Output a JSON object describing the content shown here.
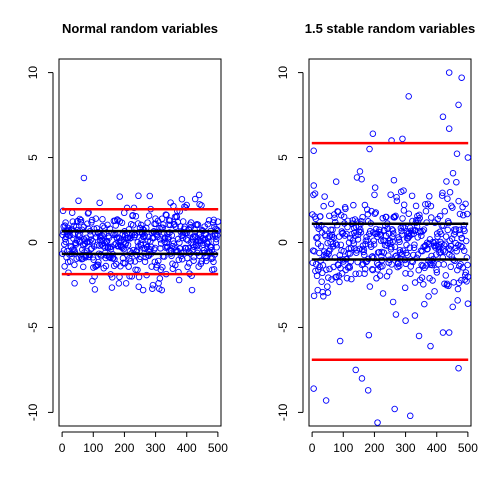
{
  "chart_data": [
    {
      "type": "scatter",
      "title": "Normal random variables",
      "xlabel": "",
      "ylabel": "",
      "xlim": [
        -10,
        510
      ],
      "ylim": [
        -10.8,
        10.8
      ],
      "xticks": [
        0,
        100,
        200,
        300,
        400,
        500
      ],
      "xtick_labels": [
        "0",
        "100",
        "200",
        "300",
        "400",
        "500"
      ],
      "yticks": [
        -10,
        -5,
        0,
        5,
        10
      ],
      "ytick_labels": [
        "-10",
        "-5",
        "0",
        "5",
        "10"
      ],
      "grid": false,
      "point_color": "#0000ff",
      "point_style": "open-circle",
      "n_points": 500,
      "value_range": [
        -2.8,
        3.8
      ],
      "hlines": [
        {
          "y": 1.96,
          "color": "#ff0000"
        },
        {
          "y": -1.86,
          "color": "#ff0000"
        },
        {
          "y": 0.67,
          "color": "#000000"
        },
        {
          "y": -0.67,
          "color": "#000000"
        }
      ],
      "highlight_points": [
        {
          "x": 70,
          "y": 3.8
        },
        {
          "x": 185,
          "y": 2.7
        },
        {
          "x": 245,
          "y": 2.75
        },
        {
          "x": 440,
          "y": 2.8
        },
        {
          "x": 40,
          "y": -2.4
        },
        {
          "x": 260,
          "y": -2.8
        }
      ]
    },
    {
      "type": "scatter",
      "title": "1.5 stable random variables",
      "xlabel": "",
      "ylabel": "",
      "xlim": [
        -10,
        510
      ],
      "ylim": [
        -10.8,
        10.8
      ],
      "xticks": [
        0,
        100,
        200,
        300,
        400,
        500
      ],
      "xtick_labels": [
        "0",
        "100",
        "200",
        "300",
        "400",
        "500"
      ],
      "yticks": [
        -10,
        -5,
        0,
        5,
        10
      ],
      "ytick_labels": [
        "-10",
        "-5",
        "0",
        "5",
        "10"
      ],
      "grid": false,
      "point_color": "#0000ff",
      "point_style": "open-circle",
      "n_points": 500,
      "value_range": [
        -10.6,
        10.1
      ],
      "hlines": [
        {
          "y": 5.85,
          "color": "#ff0000"
        },
        {
          "y": -6.9,
          "color": "#ff0000"
        },
        {
          "y": 1.1,
          "color": "#000000"
        },
        {
          "y": -1.0,
          "color": "#000000"
        }
      ],
      "highlight_points": [
        {
          "x": 440,
          "y": 10.0
        },
        {
          "x": 480,
          "y": 9.7
        },
        {
          "x": 310,
          "y": 8.6
        },
        {
          "x": 470,
          "y": 8.1
        },
        {
          "x": 420,
          "y": 7.4
        },
        {
          "x": 5,
          "y": 5.4
        },
        {
          "x": 195,
          "y": 6.4
        },
        {
          "x": 255,
          "y": 6.0
        },
        {
          "x": 290,
          "y": 6.1
        },
        {
          "x": 500,
          "y": 5.0
        },
        {
          "x": 440,
          "y": 6.7
        },
        {
          "x": 5,
          "y": -8.6
        },
        {
          "x": 45,
          "y": -9.3
        },
        {
          "x": 210,
          "y": -10.6
        },
        {
          "x": 315,
          "y": -10.2
        },
        {
          "x": 265,
          "y": -9.8
        },
        {
          "x": 180,
          "y": -8.7
        },
        {
          "x": 140,
          "y": -7.5
        },
        {
          "x": 160,
          "y": -8.0
        },
        {
          "x": 90,
          "y": -5.8
        },
        {
          "x": 300,
          "y": -4.6
        },
        {
          "x": 330,
          "y": -4.3
        },
        {
          "x": 380,
          "y": -6.1
        },
        {
          "x": 420,
          "y": -5.3
        },
        {
          "x": 440,
          "y": -5.3
        },
        {
          "x": 470,
          "y": -7.4
        },
        {
          "x": 500,
          "y": -3.6
        },
        {
          "x": 260,
          "y": -3.5
        }
      ]
    }
  ]
}
